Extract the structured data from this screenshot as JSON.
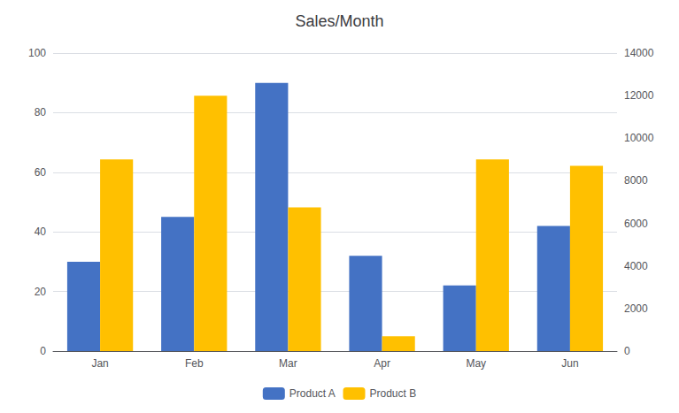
{
  "chart_data": {
    "type": "bar",
    "title": "Sales/Month",
    "categories": [
      "Jan",
      "Feb",
      "Mar",
      "Apr",
      "May",
      "Jun"
    ],
    "series": [
      {
        "name": "Product A",
        "color": "#4472C4",
        "values": [
          30,
          45,
          90,
          32,
          22,
          42
        ]
      },
      {
        "name": "Product B",
        "color": "#FFC000",
        "values": [
          9000,
          12000,
          6750,
          700,
          9000,
          8700
        ],
        "axis": "y2"
      }
    ],
    "ylim": [
      0,
      100
    ],
    "yticks": [
      0,
      20,
      40,
      60,
      80,
      100
    ],
    "y2lim": [
      0,
      14000
    ],
    "y2ticks": [
      0,
      2000,
      4000,
      6000,
      8000,
      10000,
      12000,
      14000
    ],
    "grid": true,
    "legend": "bottom"
  }
}
